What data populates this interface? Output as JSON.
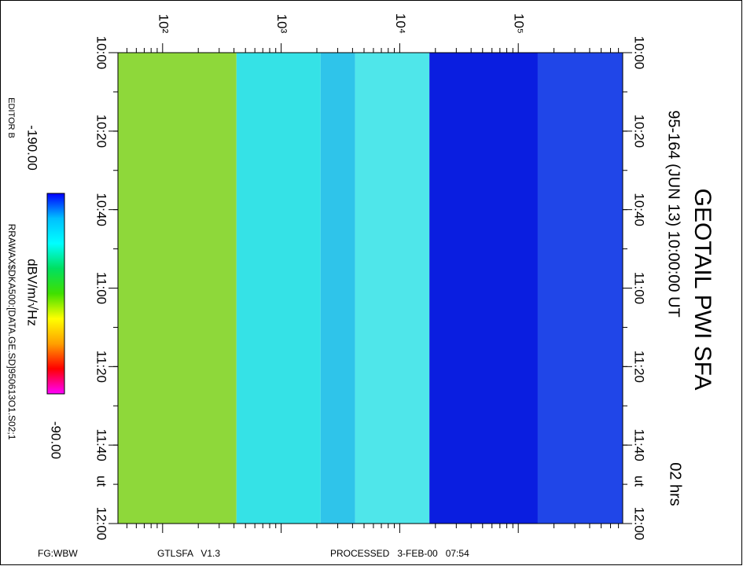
{
  "chart_data": {
    "type": "spectrogram",
    "title": "GEOTAIL PWI SFA",
    "subtitle": "95-164 (JUN 13) 10:00:00 UT",
    "duration": "02 hrs",
    "time_unit": "ut",
    "xlim": [
      42,
      760000
    ],
    "log_x": true,
    "xticks": [
      {
        "value": 100,
        "label": "10²"
      },
      {
        "value": 1000,
        "label": "10³"
      },
      {
        "value": 10000,
        "label": "10⁴"
      },
      {
        "value": 100000,
        "label": "10⁵"
      }
    ],
    "ylim": [
      "10:00",
      "12:00"
    ],
    "yticks": [
      "10:00",
      "10:20",
      "10:40",
      "11:00",
      "11:20",
      "11:40",
      "12:00"
    ],
    "bands": [
      {
        "x": [
          42,
          420
        ],
        "color": "#8ed83a"
      },
      {
        "x": [
          420,
          2150
        ],
        "color": "#35e2e6"
      },
      {
        "x": [
          2150,
          4200
        ],
        "color": "#2fc4ea"
      },
      {
        "x": [
          4200,
          17800
        ],
        "color": "#4fe6ea"
      },
      {
        "x": [
          17800,
          146000
        ],
        "color": "#0a1ee0"
      },
      {
        "x": [
          146000,
          760000
        ],
        "color": "#2046e8"
      }
    ],
    "colorbar": {
      "label": "dBV/m/√Hz",
      "lim": [
        {
          "value": -190,
          "label": "-190.00"
        },
        {
          "value": -90,
          "label": "-90.00"
        }
      ],
      "colors": [
        "#0000ff",
        "#00c0ff",
        "#00ffff",
        "#00e060",
        "#40e000",
        "#ffff00",
        "#ffa000",
        "#ff0000",
        "#ff00ff"
      ]
    },
    "editor": "EDITOR B",
    "file": "RRAWAX$DKA500:[DATA.GE.SD]950613O1.S02;1",
    "footer": [
      "FG:WBW",
      "GTLSFA   V1.3",
      "PROCESSED   3-FEB-00   07:54"
    ]
  }
}
